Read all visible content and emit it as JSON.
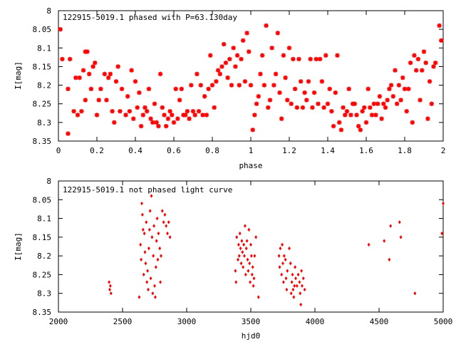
{
  "chart_data": [
    {
      "type": "scatter",
      "title": "122915-5019.1 phased with P=63.130day",
      "xlabel": "phase",
      "ylabel": "I[mag]",
      "xlim": [
        0,
        2
      ],
      "ylim": [
        8.35,
        8.0
      ],
      "y_inverted": true,
      "grid": false,
      "marker_color": "#ff0000",
      "xticks": [
        "0",
        "0.2",
        "0.4",
        "0.6",
        "0.8",
        "1",
        "1.2",
        "1.4",
        "1.6",
        "1.8",
        "2"
      ],
      "xtick_values": [
        0,
        0.2,
        0.4,
        0.6,
        0.8,
        1.0,
        1.2,
        1.4,
        1.6,
        1.8,
        2.0
      ],
      "yticks": [
        "8",
        "8.05",
        "8.1",
        "8.15",
        "8.2",
        "8.25",
        "8.3",
        "8.35"
      ],
      "ytick_values": [
        8.0,
        8.05,
        8.1,
        8.15,
        8.2,
        8.25,
        8.3,
        8.35
      ],
      "points": [
        [
          0.01,
          8.05
        ],
        [
          0.02,
          8.13
        ],
        [
          0.05,
          8.21
        ],
        [
          0.05,
          8.33
        ],
        [
          0.06,
          8.13
        ],
        [
          0.08,
          8.27
        ],
        [
          0.09,
          8.18
        ],
        [
          0.1,
          8.28
        ],
        [
          0.11,
          8.18
        ],
        [
          0.12,
          8.27
        ],
        [
          0.13,
          8.16
        ],
        [
          0.14,
          8.11
        ],
        [
          0.14,
          8.24
        ],
        [
          0.15,
          8.11
        ],
        [
          0.16,
          8.17
        ],
        [
          0.17,
          8.21
        ],
        [
          0.18,
          8.15
        ],
        [
          0.19,
          8.14
        ],
        [
          0.2,
          8.28
        ],
        [
          0.21,
          8.24
        ],
        [
          0.22,
          8.21
        ],
        [
          0.24,
          8.17
        ],
        [
          0.25,
          8.24
        ],
        [
          0.26,
          8.18
        ],
        [
          0.27,
          8.17
        ],
        [
          0.28,
          8.27
        ],
        [
          0.29,
          8.3
        ],
        [
          0.3,
          8.19
        ],
        [
          0.31,
          8.15
        ],
        [
          0.32,
          8.27
        ],
        [
          0.33,
          8.21
        ],
        [
          0.35,
          8.28
        ],
        [
          0.36,
          8.23
        ],
        [
          0.37,
          8.27
        ],
        [
          0.38,
          8.16
        ],
        [
          0.39,
          8.29
        ],
        [
          0.4,
          8.19
        ],
        [
          0.41,
          8.26
        ],
        [
          0.42,
          8.22
        ],
        [
          0.43,
          8.31
        ],
        [
          0.44,
          8.28
        ],
        [
          0.45,
          8.26
        ],
        [
          0.46,
          8.27
        ],
        [
          0.47,
          8.21
        ],
        [
          0.48,
          8.29
        ],
        [
          0.49,
          8.3
        ],
        [
          0.5,
          8.25
        ],
        [
          0.51,
          8.3
        ],
        [
          0.52,
          8.31
        ],
        [
          0.53,
          8.17
        ],
        [
          0.54,
          8.26
        ],
        [
          0.55,
          8.28
        ],
        [
          0.56,
          8.31
        ],
        [
          0.57,
          8.29
        ],
        [
          0.58,
          8.27
        ],
        [
          0.59,
          8.28
        ],
        [
          0.6,
          8.3
        ],
        [
          0.61,
          8.21
        ],
        [
          0.62,
          8.29
        ],
        [
          0.63,
          8.24
        ],
        [
          0.64,
          8.21
        ],
        [
          0.65,
          8.28
        ],
        [
          0.66,
          8.28
        ],
        [
          0.67,
          8.27
        ],
        [
          0.68,
          8.29
        ],
        [
          0.69,
          8.2
        ],
        [
          0.7,
          8.27
        ],
        [
          0.71,
          8.28
        ],
        [
          0.72,
          8.17
        ],
        [
          0.73,
          8.27
        ],
        [
          0.74,
          8.2
        ],
        [
          0.75,
          8.28
        ],
        [
          0.76,
          8.23
        ],
        [
          0.77,
          8.28
        ],
        [
          0.78,
          8.21
        ],
        [
          0.79,
          8.12
        ],
        [
          0.8,
          8.2
        ],
        [
          0.81,
          8.26
        ],
        [
          0.82,
          8.19
        ],
        [
          0.83,
          8.16
        ],
        [
          0.84,
          8.17
        ],
        [
          0.85,
          8.15
        ],
        [
          0.86,
          8.09
        ],
        [
          0.87,
          8.14
        ],
        [
          0.88,
          8.18
        ],
        [
          0.89,
          8.13
        ],
        [
          0.9,
          8.2
        ],
        [
          0.91,
          8.1
        ],
        [
          0.92,
          8.15
        ],
        [
          0.93,
          8.12
        ],
        [
          0.94,
          8.2
        ],
        [
          0.95,
          8.13
        ],
        [
          0.96,
          8.08
        ],
        [
          0.97,
          8.19
        ],
        [
          0.98,
          8.06
        ],
        [
          0.99,
          8.11
        ],
        [
          1.0,
          8.2
        ],
        [
          1.01,
          8.32
        ],
        [
          1.02,
          8.28
        ],
        [
          1.03,
          8.25
        ],
        [
          1.04,
          8.23
        ],
        [
          1.05,
          8.17
        ],
        [
          1.06,
          8.12
        ],
        [
          1.07,
          8.2
        ],
        [
          1.08,
          8.04
        ],
        [
          1.09,
          8.26
        ],
        [
          1.1,
          8.24
        ],
        [
          1.11,
          8.1
        ],
        [
          1.12,
          8.2
        ],
        [
          1.13,
          8.17
        ],
        [
          1.14,
          8.06
        ],
        [
          1.15,
          8.22
        ],
        [
          1.16,
          8.29
        ],
        [
          1.17,
          8.12
        ],
        [
          1.18,
          8.18
        ],
        [
          1.19,
          8.24
        ],
        [
          1.2,
          8.1
        ],
        [
          1.21,
          8.25
        ],
        [
          1.22,
          8.13
        ],
        [
          1.23,
          8.21
        ],
        [
          1.24,
          8.26
        ],
        [
          1.25,
          8.13
        ],
        [
          1.26,
          8.19
        ],
        [
          1.27,
          8.26
        ],
        [
          1.28,
          8.22
        ],
        [
          1.29,
          8.24
        ],
        [
          1.3,
          8.19
        ],
        [
          1.31,
          8.13
        ],
        [
          1.32,
          8.26
        ],
        [
          1.33,
          8.22
        ],
        [
          1.34,
          8.13
        ],
        [
          1.35,
          8.25
        ],
        [
          1.36,
          8.13
        ],
        [
          1.37,
          8.19
        ],
        [
          1.38,
          8.26
        ],
        [
          1.39,
          8.12
        ],
        [
          1.4,
          8.25
        ],
        [
          1.41,
          8.21
        ],
        [
          1.42,
          8.27
        ],
        [
          1.43,
          8.31
        ],
        [
          1.44,
          8.22
        ],
        [
          1.45,
          8.12
        ],
        [
          1.46,
          8.3
        ],
        [
          1.47,
          8.32
        ],
        [
          1.48,
          8.26
        ],
        [
          1.49,
          8.28
        ],
        [
          1.5,
          8.27
        ],
        [
          1.51,
          8.21
        ],
        [
          1.52,
          8.28
        ],
        [
          1.53,
          8.25
        ],
        [
          1.54,
          8.25
        ],
        [
          1.55,
          8.28
        ],
        [
          1.56,
          8.31
        ],
        [
          1.57,
          8.32
        ],
        [
          1.58,
          8.27
        ],
        [
          1.59,
          8.26
        ],
        [
          1.6,
          8.3
        ],
        [
          1.61,
          8.21
        ],
        [
          1.62,
          8.26
        ],
        [
          1.63,
          8.28
        ],
        [
          1.64,
          8.25
        ],
        [
          1.65,
          8.28
        ],
        [
          1.66,
          8.25
        ],
        [
          1.67,
          8.23
        ],
        [
          1.68,
          8.29
        ],
        [
          1.69,
          8.25
        ],
        [
          1.7,
          8.26
        ],
        [
          1.71,
          8.24
        ],
        [
          1.72,
          8.21
        ],
        [
          1.73,
          8.2
        ],
        [
          1.74,
          8.23
        ],
        [
          1.75,
          8.16
        ],
        [
          1.76,
          8.25
        ],
        [
          1.77,
          8.2
        ],
        [
          1.78,
          8.24
        ],
        [
          1.79,
          8.18
        ],
        [
          1.8,
          8.21
        ],
        [
          1.81,
          8.27
        ],
        [
          1.82,
          8.21
        ],
        [
          1.83,
          8.14
        ],
        [
          1.84,
          8.3
        ],
        [
          1.85,
          8.12
        ],
        [
          1.86,
          8.16
        ],
        [
          1.87,
          8.13
        ],
        [
          1.88,
          8.24
        ],
        [
          1.89,
          8.16
        ],
        [
          1.9,
          8.11
        ],
        [
          1.91,
          8.14
        ],
        [
          1.92,
          8.29
        ],
        [
          1.93,
          8.19
        ],
        [
          1.94,
          8.25
        ],
        [
          1.95,
          8.15
        ],
        [
          1.96,
          8.14
        ],
        [
          1.98,
          8.04
        ],
        [
          1.99,
          8.08
        ]
      ]
    },
    {
      "type": "scatter",
      "title": "122915-5019.1 not phased light curve",
      "xlabel": "hjd0",
      "ylabel": "I[mag]",
      "xlim": [
        2000,
        5000
      ],
      "ylim": [
        8.35,
        8.0
      ],
      "y_inverted": true,
      "grid": false,
      "marker_color": "#ff0000",
      "xticks": [
        "2000",
        "2500",
        "3000",
        "3500",
        "4000",
        "4500",
        "5000"
      ],
      "xtick_values": [
        2000,
        2500,
        3000,
        3500,
        4000,
        4500,
        5000
      ],
      "yticks": [
        "8",
        "8.05",
        "8.1",
        "8.15",
        "8.2",
        "8.25",
        "8.3",
        "8.35"
      ],
      "ytick_values": [
        8.0,
        8.05,
        8.1,
        8.15,
        8.2,
        8.25,
        8.3,
        8.35
      ],
      "points": [
        [
          2395,
          8.27
        ],
        [
          2400,
          8.29
        ],
        [
          2405,
          8.28
        ],
        [
          2410,
          8.3
        ],
        [
          2630,
          8.31
        ],
        [
          2640,
          8.17
        ],
        [
          2645,
          8.21
        ],
        [
          2650,
          8.06
        ],
        [
          2655,
          8.09
        ],
        [
          2660,
          8.13
        ],
        [
          2665,
          8.25
        ],
        [
          2670,
          8.14
        ],
        [
          2675,
          8.19
        ],
        [
          2680,
          8.22
        ],
        [
          2685,
          8.11
        ],
        [
          2690,
          8.27
        ],
        [
          2695,
          8.24
        ],
        [
          2700,
          8.29
        ],
        [
          2705,
          8.18
        ],
        [
          2710,
          8.13
        ],
        [
          2715,
          8.08
        ],
        [
          2720,
          8.26
        ],
        [
          2725,
          8.04
        ],
        [
          2730,
          8.15
        ],
        [
          2735,
          8.3
        ],
        [
          2740,
          8.2
        ],
        [
          2745,
          8.12
        ],
        [
          2750,
          8.28
        ],
        [
          2755,
          8.31
        ],
        [
          2760,
          8.23
        ],
        [
          2765,
          8.16
        ],
        [
          2770,
          8.1
        ],
        [
          2775,
          8.21
        ],
        [
          2780,
          8.14
        ],
        [
          2790,
          8.18
        ],
        [
          2795,
          8.27
        ],
        [
          2800,
          8.2
        ],
        [
          2810,
          8.08
        ],
        [
          2820,
          8.11
        ],
        [
          2830,
          8.09
        ],
        [
          2840,
          8.12
        ],
        [
          2850,
          8.14
        ],
        [
          2860,
          8.11
        ],
        [
          2870,
          8.15
        ],
        [
          3380,
          8.24
        ],
        [
          3385,
          8.27
        ],
        [
          3390,
          8.15
        ],
        [
          3400,
          8.21
        ],
        [
          3405,
          8.17
        ],
        [
          3410,
          8.2
        ],
        [
          3415,
          8.14
        ],
        [
          3420,
          8.18
        ],
        [
          3425,
          8.22
        ],
        [
          3430,
          8.16
        ],
        [
          3435,
          8.19
        ],
        [
          3440,
          8.23
        ],
        [
          3445,
          8.17
        ],
        [
          3450,
          8.2
        ],
        [
          3455,
          8.12
        ],
        [
          3460,
          8.25
        ],
        [
          3465,
          8.18
        ],
        [
          3470,
          8.16
        ],
        [
          3475,
          8.21
        ],
        [
          3480,
          8.24
        ],
        [
          3485,
          8.13
        ],
        [
          3490,
          8.22
        ],
        [
          3495,
          8.27
        ],
        [
          3500,
          8.17
        ],
        [
          3505,
          8.2
        ],
        [
          3510,
          8.25
        ],
        [
          3515,
          8.23
        ],
        [
          3520,
          8.28
        ],
        [
          3525,
          8.26
        ],
        [
          3530,
          8.2
        ],
        [
          3540,
          8.15
        ],
        [
          3560,
          8.31
        ],
        [
          3720,
          8.2
        ],
        [
          3725,
          8.23
        ],
        [
          3730,
          8.18
        ],
        [
          3740,
          8.25
        ],
        [
          3745,
          8.17
        ],
        [
          3750,
          8.22
        ],
        [
          3755,
          8.27
        ],
        [
          3760,
          8.2
        ],
        [
          3770,
          8.21
        ],
        [
          3775,
          8.26
        ],
        [
          3780,
          8.29
        ],
        [
          3785,
          8.24
        ],
        [
          3800,
          8.18
        ],
        [
          3810,
          8.22
        ],
        [
          3815,
          8.3
        ],
        [
          3820,
          8.27
        ],
        [
          3825,
          8.25
        ],
        [
          3830,
          8.29
        ],
        [
          3835,
          8.31
        ],
        [
          3840,
          8.28
        ],
        [
          3845,
          8.23
        ],
        [
          3850,
          8.26
        ],
        [
          3860,
          8.28
        ],
        [
          3870,
          8.25
        ],
        [
          3880,
          8.27
        ],
        [
          3885,
          8.3
        ],
        [
          3890,
          8.33
        ],
        [
          3895,
          8.24
        ],
        [
          3900,
          8.28
        ],
        [
          3910,
          8.26
        ],
        [
          3920,
          8.29
        ],
        [
          4420,
          8.17
        ],
        [
          4540,
          8.16
        ],
        [
          4580,
          8.21
        ],
        [
          4590,
          8.12
        ],
        [
          4660,
          8.11
        ],
        [
          4670,
          8.15
        ],
        [
          4780,
          8.3
        ],
        [
          4990,
          8.14
        ],
        [
          5000,
          8.06
        ]
      ]
    }
  ]
}
